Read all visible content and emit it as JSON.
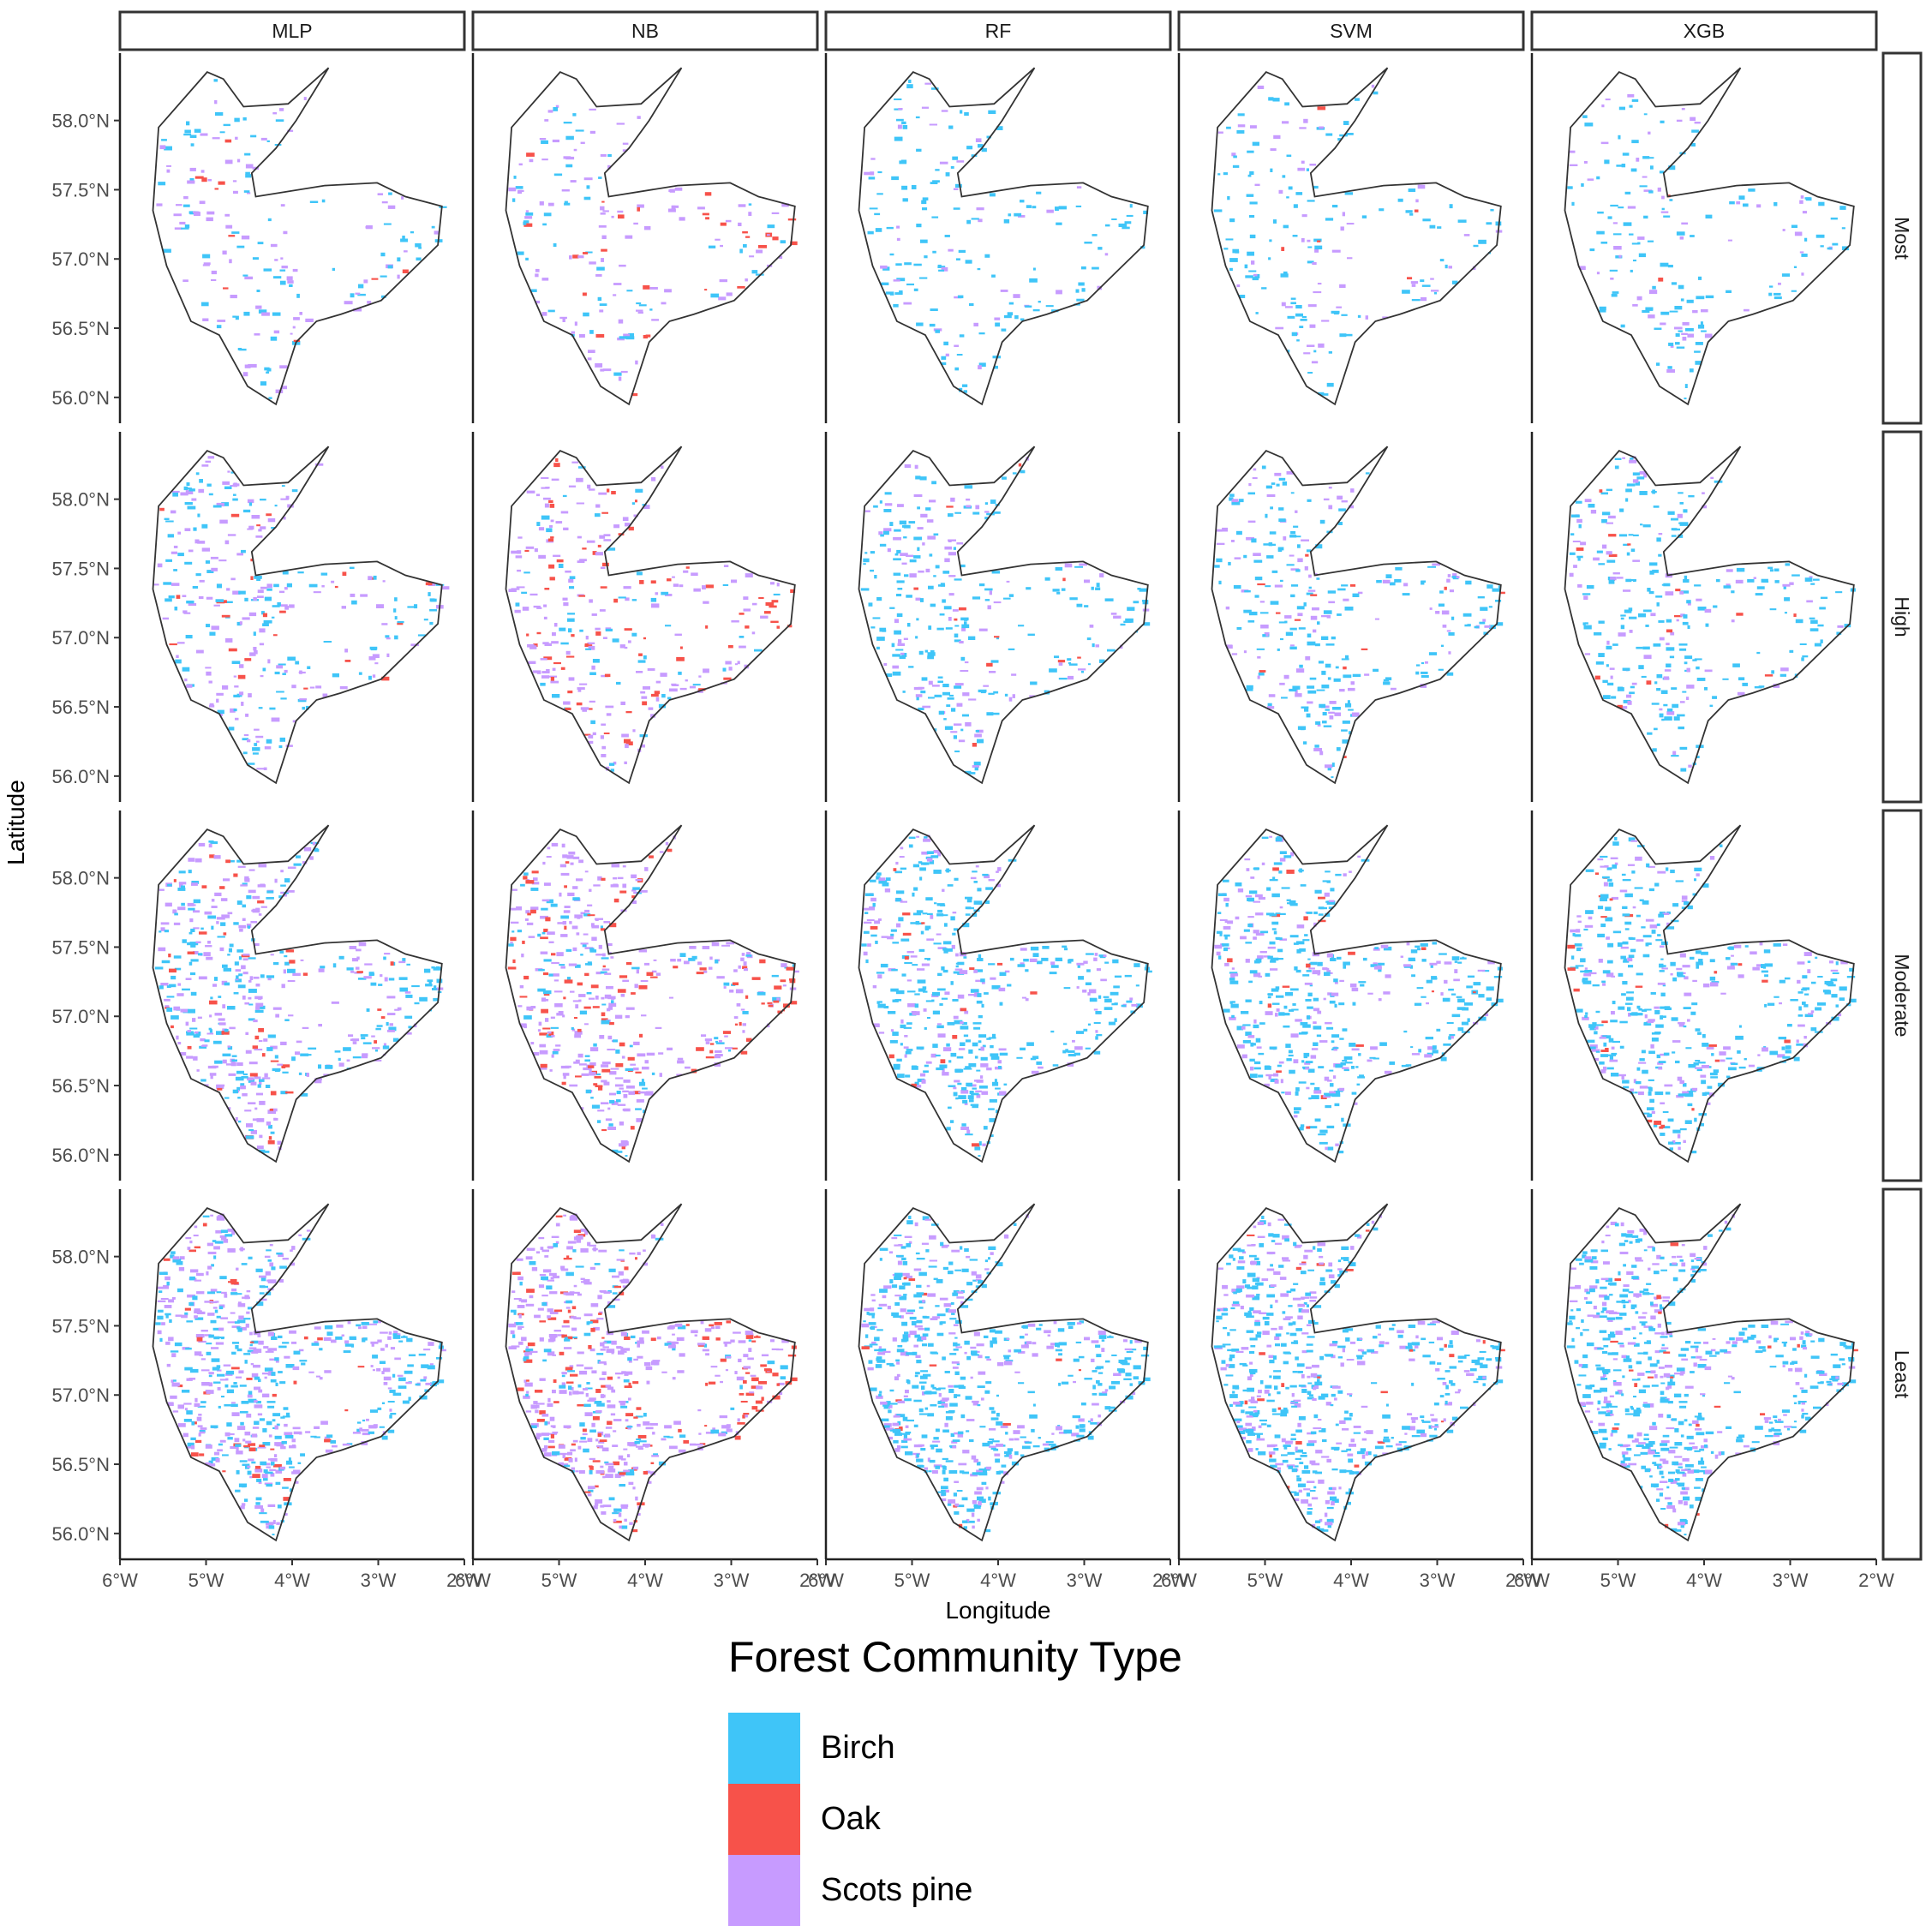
{
  "chart_data": {
    "type": "faceted-map",
    "xlabel": "Longitude",
    "ylabel": "Latitude",
    "columns": [
      "MLP",
      "NB",
      "RF",
      "SVM",
      "XGB"
    ],
    "rows": [
      "Most",
      "High",
      "Moderate",
      "Least"
    ],
    "x_range_deg": [
      -6,
      -2
    ],
    "y_range_deg": [
      55.9,
      58.4
    ],
    "x_ticks": [
      "6°W",
      "5°W",
      "4°W",
      "3°W",
      "2°W"
    ],
    "y_ticks": [
      "56.0°N",
      "56.5°N",
      "57.0°N",
      "57.5°N",
      "58.0°N"
    ],
    "grid": false,
    "legend": {
      "title": "Forest Community Type",
      "position": "bottom",
      "items": [
        {
          "label": "Birch",
          "color": "#3FC5F8"
        },
        {
          "label": "Oak",
          "color": "#F7524A"
        },
        {
          "label": "Scots pine",
          "color": "#C79BFF"
        }
      ]
    },
    "boundary": [
      [
        -4.2,
        55.95
      ],
      [
        -4.55,
        56.08
      ],
      [
        -4.9,
        56.45
      ],
      [
        -5.25,
        56.55
      ],
      [
        -5.55,
        56.95
      ],
      [
        -5.72,
        57.35
      ],
      [
        -5.65,
        57.95
      ],
      [
        -5.05,
        58.35
      ],
      [
        -4.85,
        58.3
      ],
      [
        -4.6,
        58.1
      ],
      [
        -4.05,
        58.12
      ],
      [
        -3.55,
        58.38
      ],
      [
        -3.95,
        58.0
      ],
      [
        -4.2,
        57.8
      ],
      [
        -4.5,
        57.62
      ],
      [
        -4.45,
        57.45
      ],
      [
        -3.6,
        57.53
      ],
      [
        -2.95,
        57.55
      ],
      [
        -2.6,
        57.45
      ],
      [
        -2.15,
        57.38
      ],
      [
        -2.2,
        57.1
      ],
      [
        -2.55,
        56.9
      ],
      [
        -2.9,
        56.7
      ],
      [
        -3.4,
        56.6
      ],
      [
        -3.7,
        56.55
      ],
      [
        -3.95,
        56.4
      ],
      [
        -4.2,
        55.95
      ]
    ],
    "approximate_cover_share": {
      "note": "fraction of mapped forest cells per class, visual estimate",
      "MLP": {
        "Most": [
          0.45,
          0.05,
          0.5
        ],
        "High": [
          0.45,
          0.08,
          0.47
        ],
        "Moderate": [
          0.4,
          0.08,
          0.52
        ],
        "Least": [
          0.4,
          0.06,
          0.54
        ]
      },
      "NB": {
        "Most": [
          0.25,
          0.15,
          0.6
        ],
        "High": [
          0.2,
          0.2,
          0.6
        ],
        "Moderate": [
          0.2,
          0.2,
          0.6
        ],
        "Least": [
          0.15,
          0.2,
          0.65
        ]
      },
      "RF": {
        "Most": [
          0.7,
          0.02,
          0.28
        ],
        "High": [
          0.65,
          0.03,
          0.32
        ],
        "Moderate": [
          0.65,
          0.03,
          0.32
        ],
        "Least": [
          0.62,
          0.03,
          0.35
        ]
      },
      "SVM": {
        "Most": [
          0.6,
          0.05,
          0.35
        ],
        "High": [
          0.6,
          0.06,
          0.34
        ],
        "Moderate": [
          0.6,
          0.05,
          0.35
        ],
        "Least": [
          0.58,
          0.05,
          0.37
        ]
      },
      "XGB": {
        "Most": [
          0.65,
          0.04,
          0.31
        ],
        "High": [
          0.65,
          0.05,
          0.3
        ],
        "Moderate": [
          0.62,
          0.06,
          0.32
        ],
        "Least": [
          0.6,
          0.05,
          0.35
        ]
      }
    }
  }
}
